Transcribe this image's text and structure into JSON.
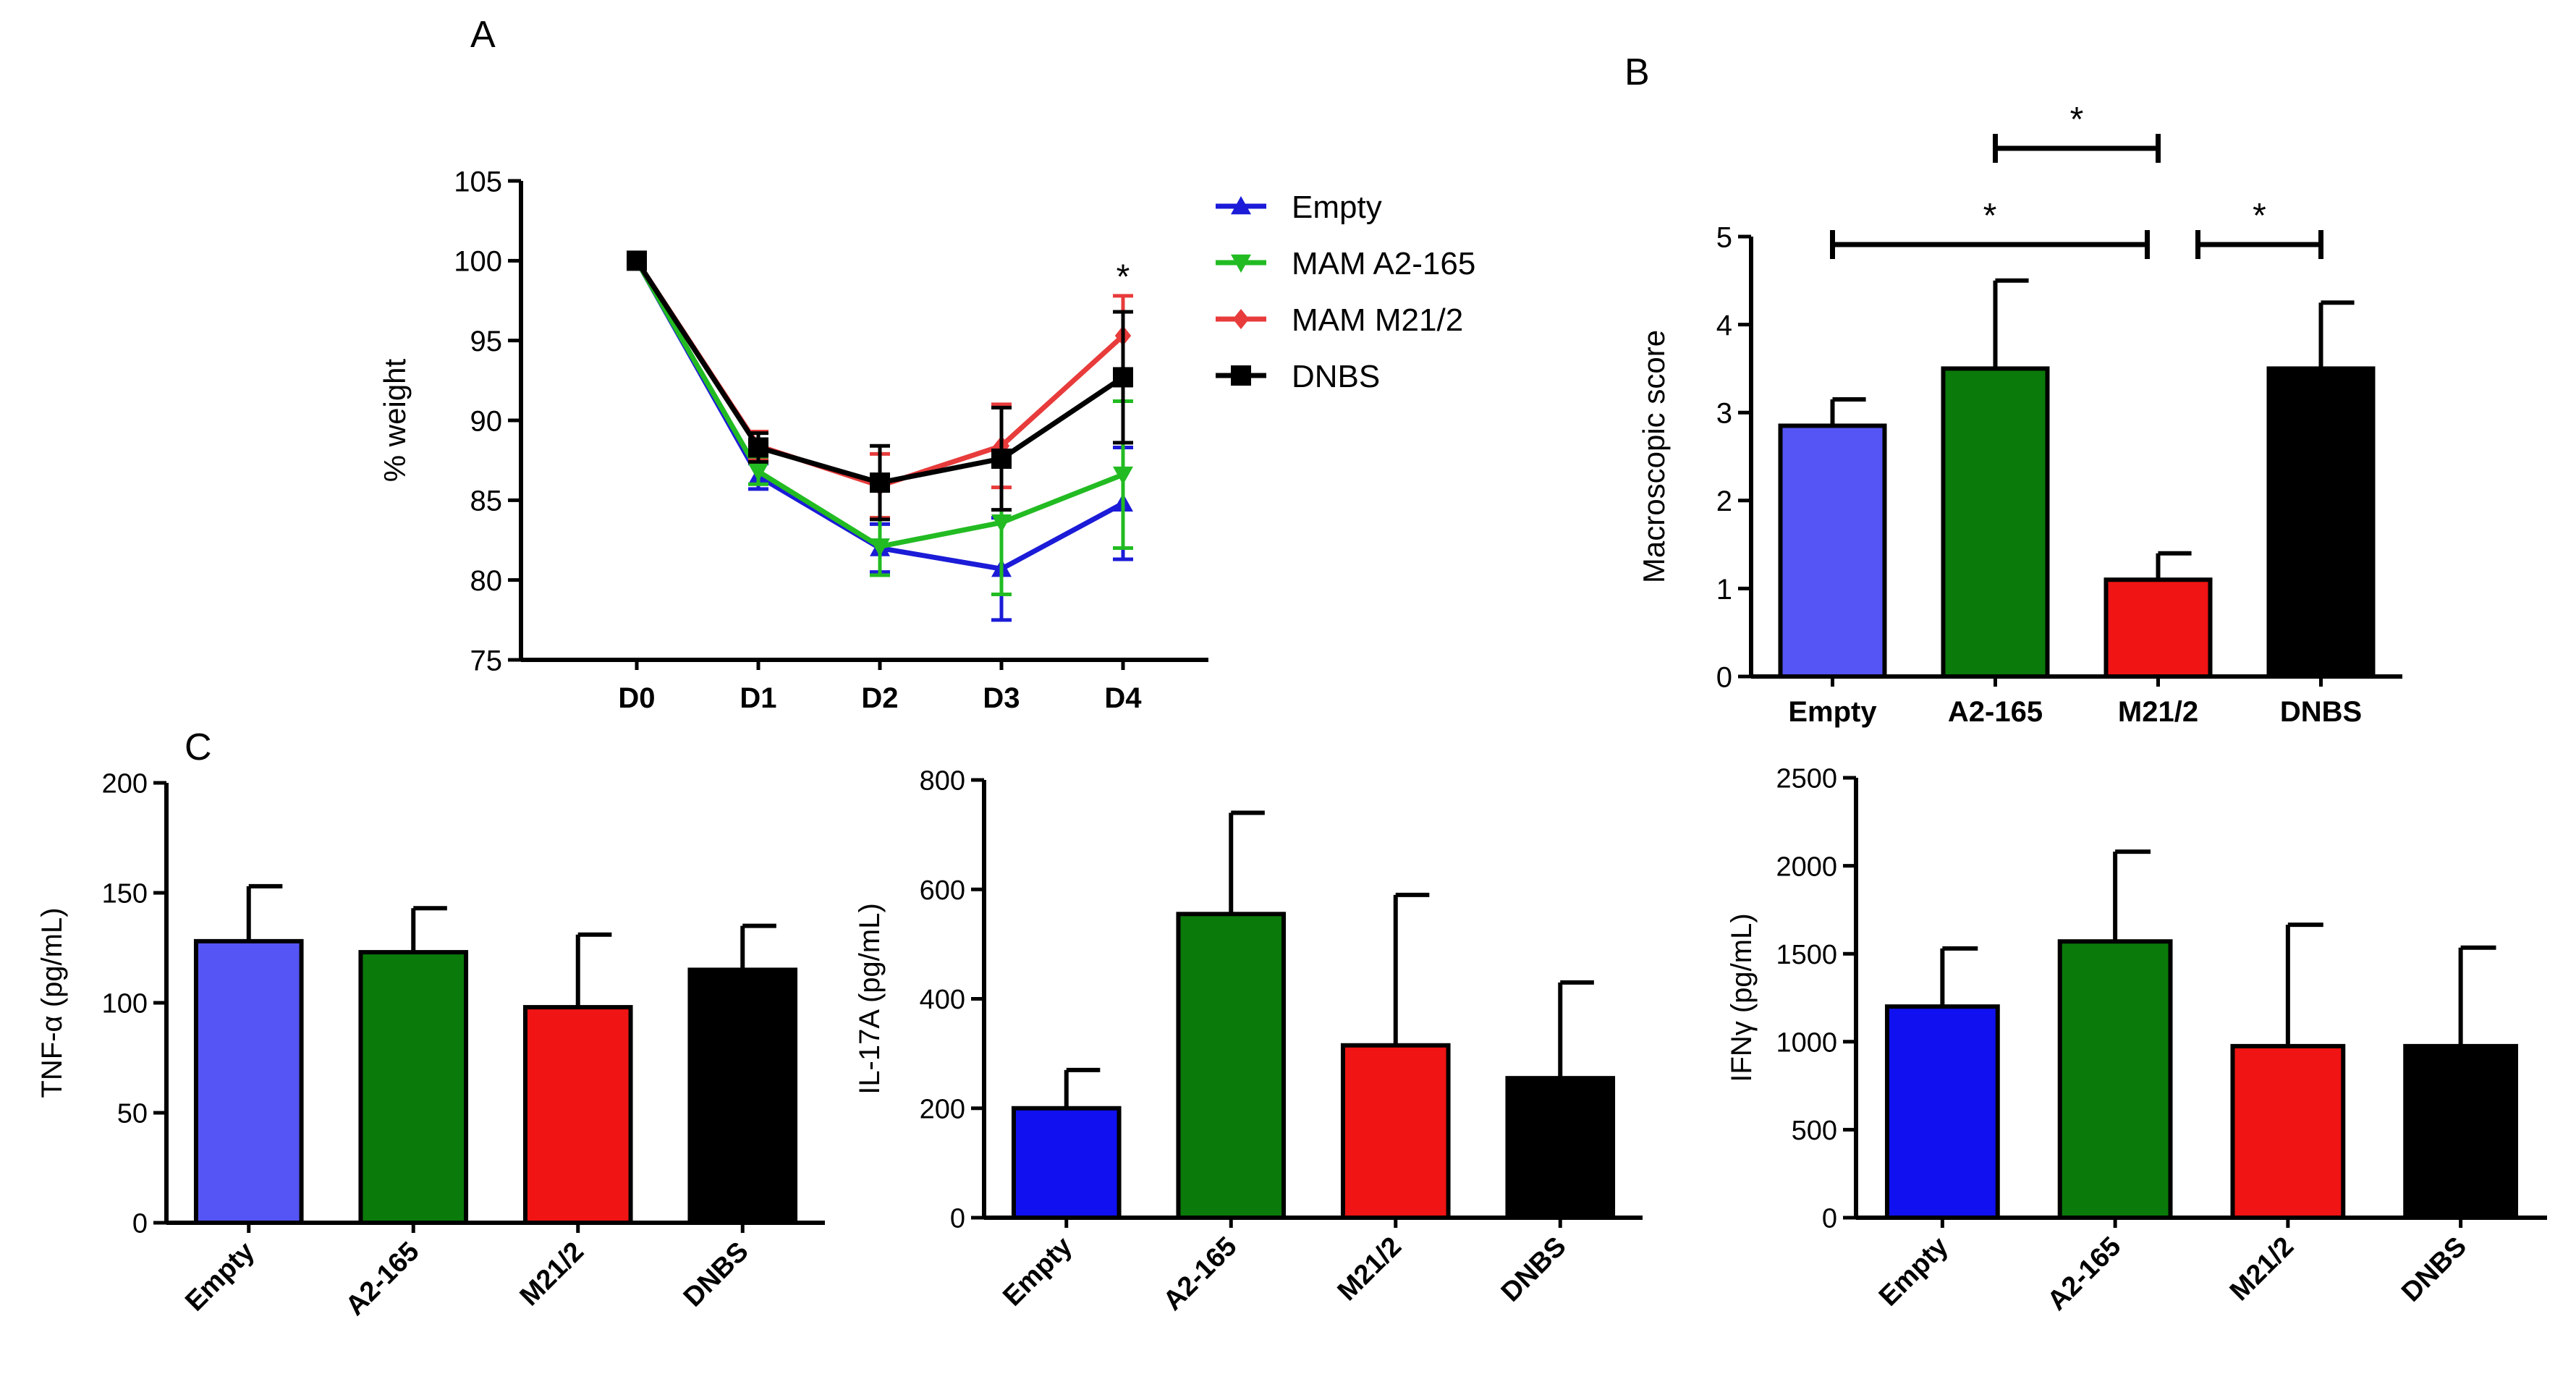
{
  "panels": {
    "A": "A",
    "B": "B",
    "C": "C"
  },
  "chart_data": [
    {
      "id": "A",
      "type": "line",
      "ylabel": "% weight",
      "xlabel": "",
      "categories": [
        "D0",
        "D1",
        "D2",
        "D3",
        "D4"
      ],
      "ylim": [
        75,
        105
      ],
      "yticks": [
        75,
        80,
        85,
        90,
        95,
        100,
        105
      ],
      "legend_position": "right",
      "annotation": "*",
      "annotation_category": "D4",
      "annotation_value": 98,
      "series": [
        {
          "name": "Empty",
          "color": "#1b1bd8",
          "marker": "triangle-up",
          "values": [
            100,
            86.5,
            82,
            80.7,
            84.8
          ],
          "errors": [
            0,
            0.8,
            1.5,
            3.2,
            3.5
          ]
        },
        {
          "name": "MAM A2-165",
          "color": "#22bb22",
          "marker": "triangle-down",
          "values": [
            100,
            86.8,
            82.1,
            83.6,
            86.6
          ],
          "errors": [
            0,
            0.8,
            1.8,
            4.5,
            4.6
          ]
        },
        {
          "name": "MAM M21/2",
          "color": "#e83b3b",
          "marker": "diamond",
          "values": [
            100,
            88.4,
            85.9,
            88.4,
            95.3
          ],
          "errors": [
            0,
            0.9,
            2.0,
            2.6,
            2.5
          ]
        },
        {
          "name": "DNBS",
          "color": "#000000",
          "marker": "square",
          "values": [
            100,
            88.3,
            86.1,
            87.6,
            92.7
          ],
          "errors": [
            0,
            0.9,
            2.3,
            3.2,
            4.1
          ]
        }
      ]
    },
    {
      "id": "B",
      "type": "bar",
      "ylabel": "Macroscopic score",
      "xlabel": "",
      "categories": [
        "Empty",
        "A2-165",
        "M21/2",
        "DNBS"
      ],
      "ylim": [
        0,
        5
      ],
      "yticks": [
        0,
        1,
        2,
        3,
        4,
        5
      ],
      "values": [
        2.85,
        3.5,
        1.1,
        3.5
      ],
      "errors": [
        0.3,
        1.0,
        0.3,
        0.75
      ],
      "colors": [
        "#5555f5",
        "#0a7a0a",
        "#f01414",
        "#000000"
      ],
      "significance": [
        {
          "from": "A2-165",
          "to": "M21/2",
          "label": "*"
        },
        {
          "from": "Empty",
          "to": "M21/2",
          "label": "*"
        },
        {
          "from": "M21/2",
          "to": "DNBS",
          "label": "*"
        }
      ]
    },
    {
      "id": "C1",
      "type": "bar",
      "ylabel": "TNF-α (pg/mL)",
      "xlabel": "",
      "categories": [
        "Empty",
        "A2-165",
        "M21/2",
        "DNBS"
      ],
      "ylim": [
        0,
        200
      ],
      "yticks": [
        0,
        50,
        100,
        150,
        200
      ],
      "values": [
        128,
        123,
        98,
        115
      ],
      "errors": [
        25,
        20,
        33,
        20
      ],
      "colors": [
        "#5555f5",
        "#0a7a0a",
        "#f01414",
        "#000000"
      ]
    },
    {
      "id": "C2",
      "type": "bar",
      "ylabel": "IL-17A (pg/mL)",
      "xlabel": "",
      "categories": [
        "Empty",
        "A2-165",
        "M21/2",
        "DNBS"
      ],
      "ylim": [
        0,
        800
      ],
      "yticks": [
        0,
        200,
        400,
        600,
        800
      ],
      "values": [
        200,
        555,
        315,
        255
      ],
      "errors": [
        70,
        185,
        275,
        175
      ],
      "colors": [
        "#1010f0",
        "#0a7a0a",
        "#f01414",
        "#000000"
      ]
    },
    {
      "id": "C3",
      "type": "bar",
      "ylabel": "IFNγ (pg/mL)",
      "xlabel": "",
      "categories": [
        "Empty",
        "A2-165",
        "M21/2",
        "DNBS"
      ],
      "ylim": [
        0,
        2500
      ],
      "yticks": [
        0,
        500,
        1000,
        1500,
        2000,
        2500
      ],
      "values": [
        1200,
        1570,
        975,
        975
      ],
      "errors": [
        330,
        510,
        690,
        560
      ],
      "colors": [
        "#1010f0",
        "#0a7a0a",
        "#f01414",
        "#000000"
      ]
    }
  ]
}
